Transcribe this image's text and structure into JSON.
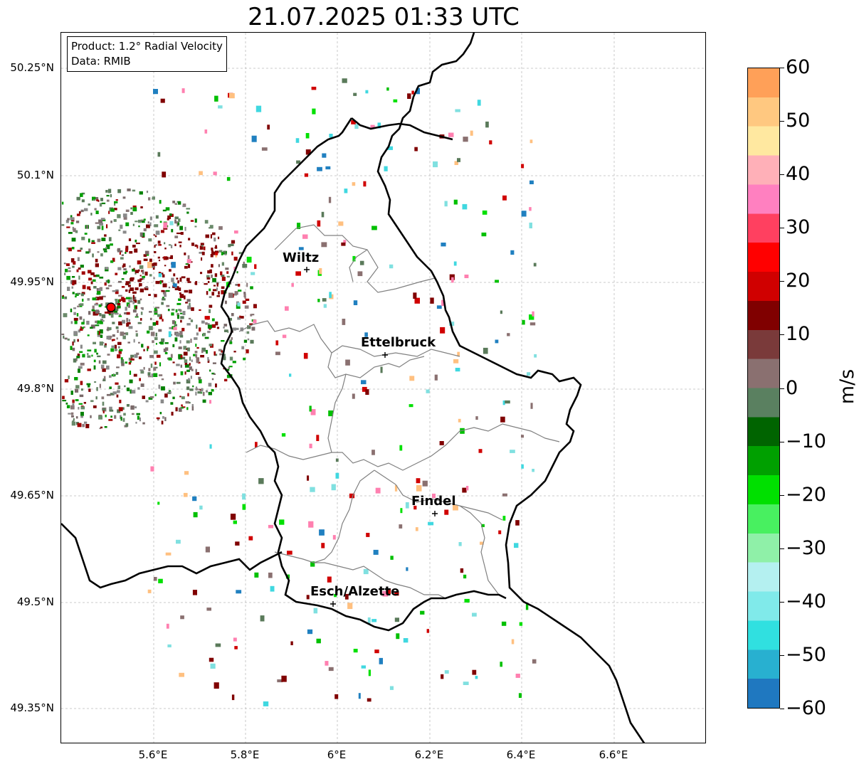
{
  "title": "21.07.2025 01:33 UTC",
  "info": {
    "product": "Product: 1.2° Radial Velocity",
    "data_source": "Data: RMIB"
  },
  "axes": {
    "lat_labels": [
      "50.25°N",
      "50.1°N",
      "49.95°N",
      "49.8°N",
      "49.65°N",
      "49.5°N",
      "49.35°N"
    ],
    "lon_labels": [
      "5.6°E",
      "5.8°E",
      "6°E",
      "6.2°E",
      "6.4°E",
      "6.6°E"
    ]
  },
  "cities": [
    {
      "name": "Wiltz"
    },
    {
      "name": "Ettelbruck"
    },
    {
      "name": "Findel"
    },
    {
      "name": "Esch/Alzette"
    }
  ],
  "colorbar": {
    "unit": "m/s",
    "ticks": [
      "60",
      "50",
      "40",
      "30",
      "20",
      "10",
      "0",
      "−10",
      "−20",
      "−30",
      "−40",
      "−50",
      "−60"
    ],
    "range": [
      -60,
      60
    ],
    "colors": [
      "#1f78c0",
      "#28b0d0",
      "#30e0e0",
      "#80eaea",
      "#b4f0f0",
      "#8ff0a8",
      "#48f060",
      "#00e000",
      "#00a000",
      "#006400",
      "#5a8060",
      "#8a7070",
      "#7a3a3a",
      "#800000",
      "#d00000",
      "#ff0000",
      "#ff4060",
      "#ff80c0",
      "#ffb0b8",
      "#ffe8a0",
      "#ffc880",
      "#ffa058"
    ]
  },
  "radar_site": {
    "color": "#ff0000"
  }
}
